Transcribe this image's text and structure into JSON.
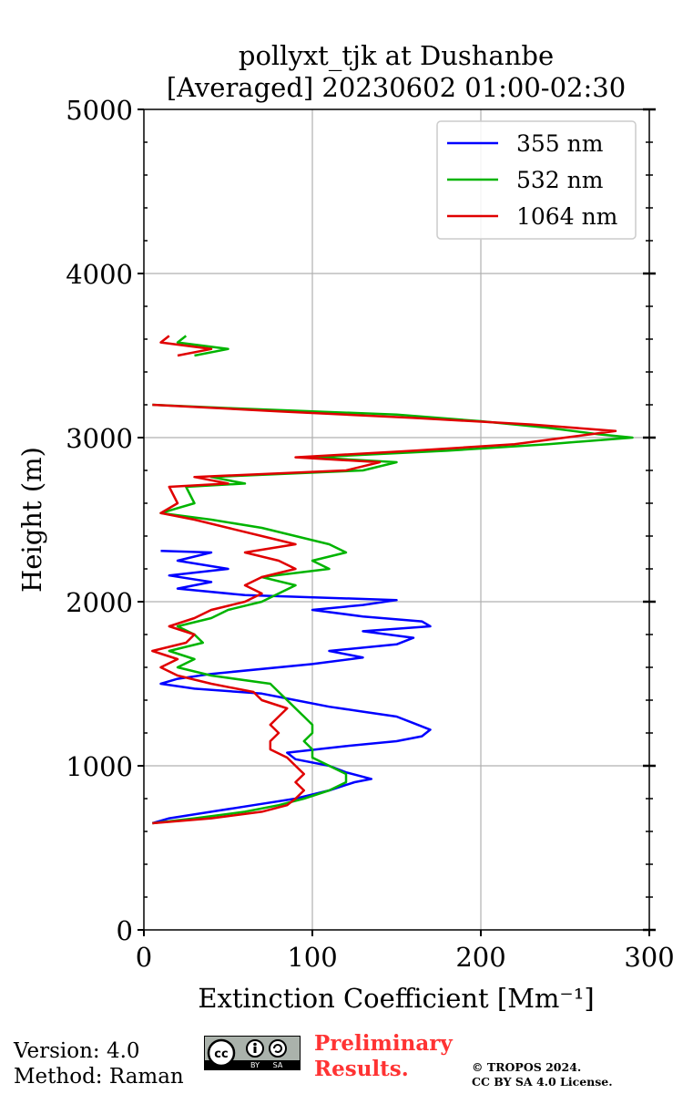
{
  "chart_data": {
    "type": "line",
    "title": [
      "pollyxt_tjk at Dushanbe",
      "[Averaged] 20230602 01:00-02:30"
    ],
    "xlabel": "Extinction Coefficient [Mm⁻¹]",
    "ylabel": "Height (m)",
    "xlim": [
      0,
      300
    ],
    "ylim": [
      0,
      5000
    ],
    "xticks": [
      0,
      100,
      200,
      300
    ],
    "yticks": [
      0,
      1000,
      2000,
      3000,
      4000,
      5000
    ],
    "grid": true,
    "legend_position": "top-right",
    "colors": {
      "355 nm": "#0000ff",
      "532 nm": "#00b400",
      "1064 nm": "#e00000"
    },
    "series": [
      {
        "name": "355 nm",
        "color": "#0000ff",
        "points": [
          [
            5,
            650
          ],
          [
            15,
            680
          ],
          [
            40,
            720
          ],
          [
            65,
            760
          ],
          [
            90,
            800
          ],
          [
            110,
            850
          ],
          [
            125,
            900
          ],
          [
            135,
            920
          ],
          [
            120,
            960
          ],
          [
            110,
            1000
          ],
          [
            90,
            1040
          ],
          [
            85,
            1080
          ],
          [
            120,
            1120
          ],
          [
            150,
            1150
          ],
          [
            165,
            1180
          ],
          [
            170,
            1220
          ],
          [
            160,
            1260
          ],
          [
            150,
            1300
          ],
          [
            130,
            1330
          ],
          [
            110,
            1360
          ],
          [
            90,
            1400
          ],
          [
            70,
            1440
          ],
          [
            30,
            1470
          ],
          [
            10,
            1500
          ],
          [
            20,
            1530
          ],
          [
            40,
            1560
          ],
          [
            100,
            1620
          ],
          [
            130,
            1660
          ],
          [
            110,
            1700
          ],
          [
            150,
            1740
          ],
          [
            160,
            1780
          ],
          [
            130,
            1820
          ],
          [
            170,
            1850
          ],
          [
            165,
            1880
          ],
          [
            130,
            1910
          ],
          [
            100,
            1950
          ],
          [
            130,
            1980
          ],
          [
            150,
            2010
          ],
          [
            60,
            2040
          ],
          [
            20,
            2080
          ],
          [
            40,
            2120
          ],
          [
            15,
            2160
          ],
          [
            50,
            2200
          ],
          [
            20,
            2250
          ],
          [
            40,
            2300
          ],
          [
            10,
            2310
          ]
        ]
      },
      {
        "name": "532 nm",
        "color": "#00b400",
        "points": [
          [
            5,
            650
          ],
          [
            30,
            680
          ],
          [
            60,
            720
          ],
          [
            80,
            760
          ],
          [
            95,
            800
          ],
          [
            110,
            850
          ],
          [
            120,
            900
          ],
          [
            120,
            950
          ],
          [
            110,
            1000
          ],
          [
            100,
            1050
          ],
          [
            100,
            1100
          ],
          [
            95,
            1150
          ],
          [
            100,
            1200
          ],
          [
            100,
            1250
          ],
          [
            95,
            1300
          ],
          [
            90,
            1350
          ],
          [
            85,
            1400
          ],
          [
            80,
            1450
          ],
          [
            75,
            1500
          ],
          [
            40,
            1550
          ],
          [
            20,
            1600
          ],
          [
            30,
            1650
          ],
          [
            15,
            1700
          ],
          [
            35,
            1750
          ],
          [
            30,
            1800
          ],
          [
            20,
            1850
          ],
          [
            40,
            1900
          ],
          [
            50,
            1950
          ],
          [
            70,
            2000
          ],
          [
            80,
            2050
          ],
          [
            90,
            2100
          ],
          [
            70,
            2150
          ],
          [
            110,
            2200
          ],
          [
            100,
            2250
          ],
          [
            120,
            2300
          ],
          [
            110,
            2350
          ],
          [
            90,
            2400
          ],
          [
            70,
            2450
          ],
          [
            40,
            2500
          ],
          [
            10,
            2540
          ],
          [
            30,
            2600
          ],
          [
            25,
            2700
          ],
          [
            60,
            2720
          ],
          [
            40,
            2760
          ],
          [
            130,
            2800
          ],
          [
            150,
            2850
          ],
          [
            100,
            2880
          ],
          [
            180,
            2920
          ],
          [
            240,
            2960
          ],
          [
            290,
            3000
          ],
          [
            270,
            3020
          ],
          [
            240,
            3060
          ],
          [
            200,
            3100
          ],
          [
            150,
            3140
          ],
          [
            50,
            3180
          ],
          [
            5,
            3200
          ],
          [
            30,
            3500
          ],
          [
            50,
            3540
          ],
          [
            20,
            3580
          ],
          [
            25,
            3620
          ]
        ]
      },
      {
        "name": "1064 nm",
        "color": "#e00000",
        "points": [
          [
            5,
            650
          ],
          [
            40,
            680
          ],
          [
            70,
            720
          ],
          [
            85,
            760
          ],
          [
            90,
            800
          ],
          [
            95,
            850
          ],
          [
            90,
            900
          ],
          [
            95,
            950
          ],
          [
            90,
            1000
          ],
          [
            85,
            1050
          ],
          [
            75,
            1100
          ],
          [
            75,
            1150
          ],
          [
            80,
            1200
          ],
          [
            75,
            1250
          ],
          [
            80,
            1300
          ],
          [
            85,
            1350
          ],
          [
            70,
            1400
          ],
          [
            65,
            1450
          ],
          [
            40,
            1500
          ],
          [
            20,
            1550
          ],
          [
            10,
            1600
          ],
          [
            20,
            1650
          ],
          [
            5,
            1700
          ],
          [
            25,
            1750
          ],
          [
            30,
            1800
          ],
          [
            15,
            1850
          ],
          [
            30,
            1900
          ],
          [
            40,
            1950
          ],
          [
            60,
            2000
          ],
          [
            70,
            2050
          ],
          [
            60,
            2100
          ],
          [
            70,
            2150
          ],
          [
            90,
            2200
          ],
          [
            80,
            2250
          ],
          [
            60,
            2300
          ],
          [
            90,
            2350
          ],
          [
            70,
            2400
          ],
          [
            50,
            2450
          ],
          [
            30,
            2500
          ],
          [
            10,
            2540
          ],
          [
            20,
            2600
          ],
          [
            15,
            2700
          ],
          [
            50,
            2720
          ],
          [
            30,
            2760
          ],
          [
            120,
            2800
          ],
          [
            140,
            2850
          ],
          [
            90,
            2880
          ],
          [
            160,
            2920
          ],
          [
            220,
            2960
          ],
          [
            250,
            3000
          ],
          [
            280,
            3040
          ],
          [
            230,
            3080
          ],
          [
            160,
            3120
          ],
          [
            80,
            3160
          ],
          [
            5,
            3200
          ],
          [
            20,
            3500
          ],
          [
            40,
            3540
          ],
          [
            10,
            3580
          ],
          [
            15,
            3620
          ]
        ]
      }
    ]
  },
  "footer": {
    "version": "Version: 4.0",
    "method": "Method: Raman",
    "preliminary": [
      "Preliminary",
      "Results."
    ],
    "copyright": [
      "© TROPOS 2024.",
      "CC BY SA 4.0 License."
    ],
    "license_badge": [
      "cc",
      "BY",
      "SA"
    ]
  }
}
